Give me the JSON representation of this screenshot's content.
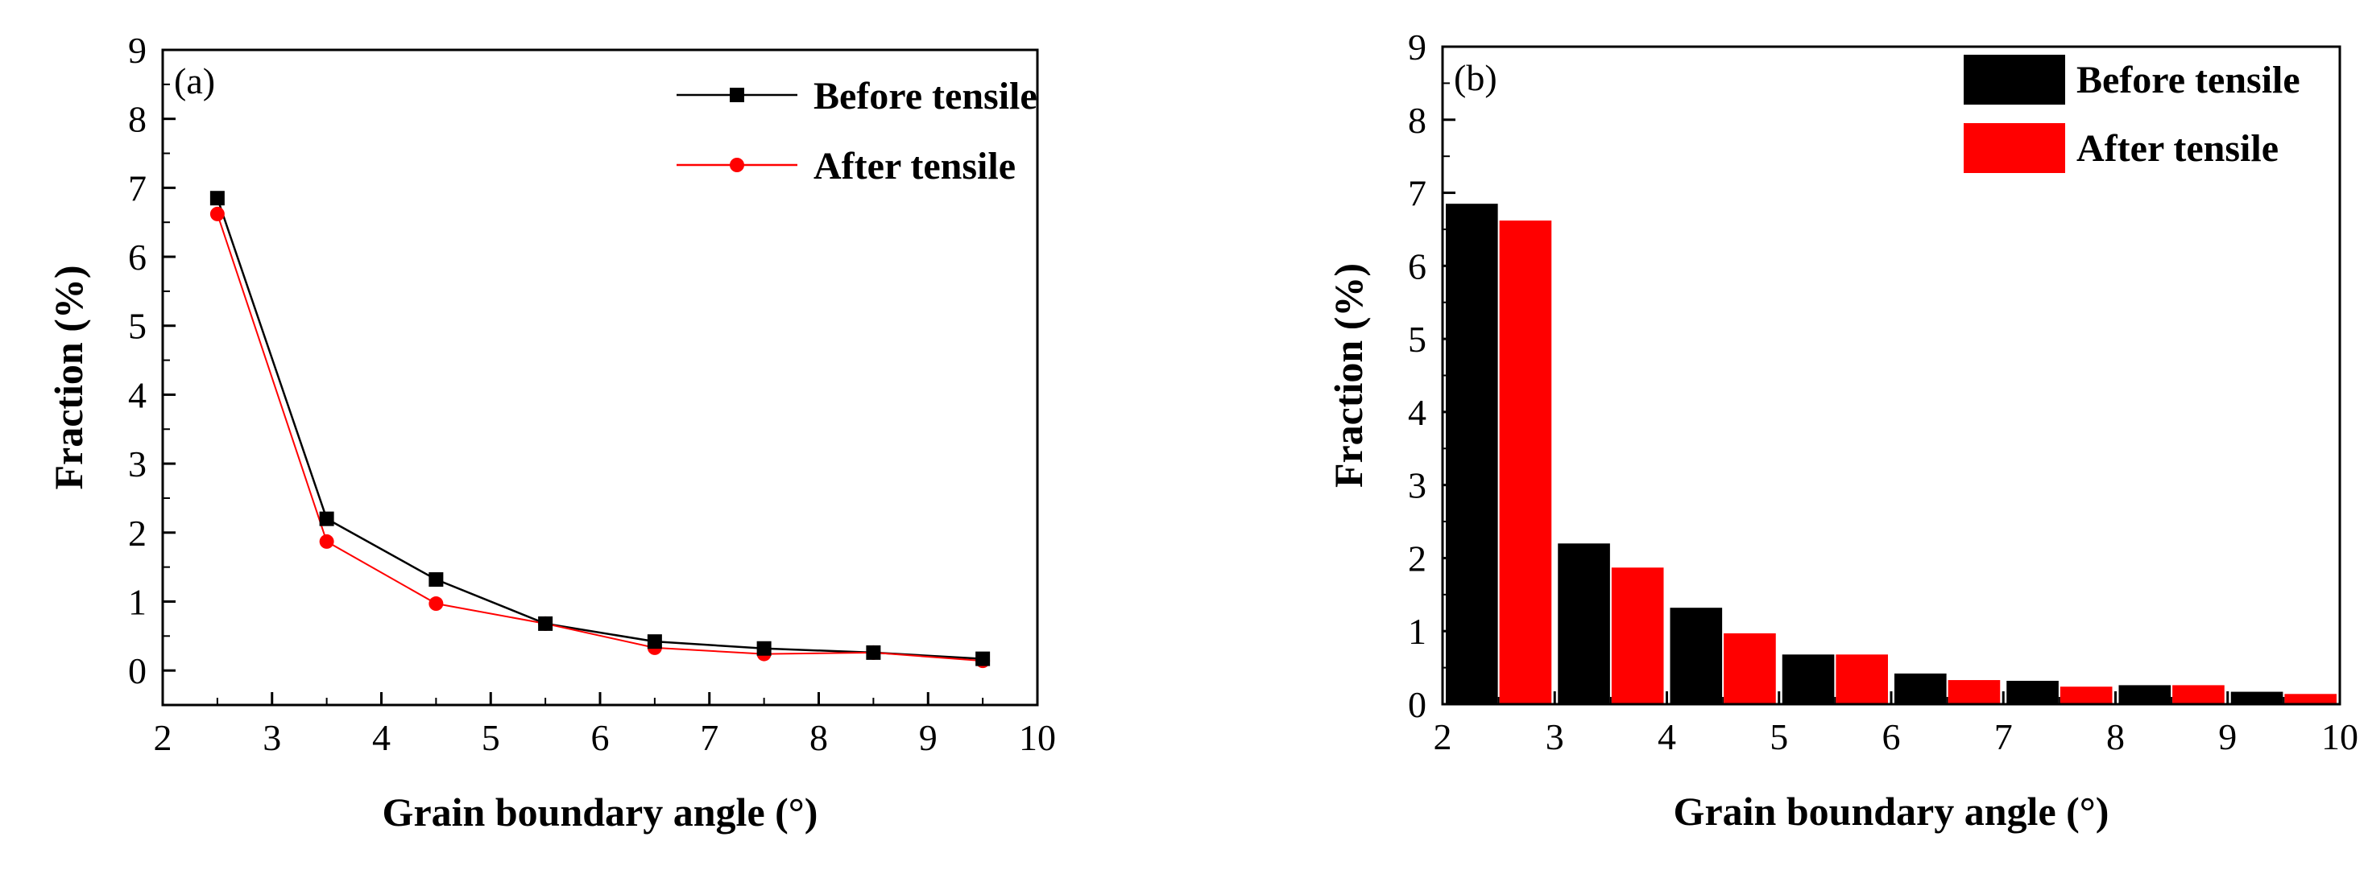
{
  "figure": {
    "colors": {
      "before": "#000000",
      "after": "#ff0000"
    }
  },
  "chart_data": [
    {
      "type": "line",
      "panel_label": "(a)",
      "title": "",
      "xlabel": "Grain boundary angle (°)",
      "ylabel": "Fraction (%)",
      "xlim": [
        2,
        10
      ],
      "ylim": [
        -0.5,
        9
      ],
      "xticks": [
        "2",
        "3",
        "4",
        "5",
        "6",
        "7",
        "8",
        "9",
        "10"
      ],
      "yticks": [
        "0",
        "1",
        "2",
        "3",
        "4",
        "5",
        "6",
        "7",
        "8",
        "9"
      ],
      "legend_position": "top-right",
      "x": [
        2.5,
        3.5,
        4.5,
        5.5,
        6.5,
        7.5,
        8.5,
        9.5
      ],
      "series": [
        {
          "name": "Before tensile",
          "color": "#000000",
          "marker": "square",
          "values": [
            6.85,
            2.2,
            1.32,
            0.68,
            0.42,
            0.32,
            0.26,
            0.17
          ]
        },
        {
          "name": "After tensile",
          "color": "#ff0000",
          "marker": "circle",
          "values": [
            6.62,
            1.87,
            0.97,
            0.68,
            0.33,
            0.24,
            0.26,
            0.14
          ]
        }
      ]
    },
    {
      "type": "bar",
      "panel_label": "(b)",
      "title": "",
      "xlabel": "Grain boundary angle (°)",
      "ylabel": "Fraction (%)",
      "xlim": [
        2,
        10
      ],
      "ylim": [
        0,
        9
      ],
      "xticks": [
        "2",
        "3",
        "4",
        "5",
        "6",
        "7",
        "8",
        "9",
        "10"
      ],
      "yticks": [
        "0",
        "1",
        "2",
        "3",
        "4",
        "5",
        "6",
        "7",
        "8",
        "9"
      ],
      "legend_position": "top-right",
      "bins": [
        [
          2,
          3
        ],
        [
          3,
          4
        ],
        [
          4,
          5
        ],
        [
          5,
          6
        ],
        [
          6,
          7
        ],
        [
          7,
          8
        ],
        [
          8,
          9
        ],
        [
          9,
          10
        ]
      ],
      "series": [
        {
          "name": "Before tensile",
          "color": "#000000",
          "values": [
            6.85,
            2.2,
            1.32,
            0.68,
            0.42,
            0.32,
            0.26,
            0.17
          ]
        },
        {
          "name": "After tensile",
          "color": "#ff0000",
          "values": [
            6.62,
            1.87,
            0.97,
            0.68,
            0.33,
            0.24,
            0.26,
            0.14
          ]
        }
      ]
    }
  ]
}
